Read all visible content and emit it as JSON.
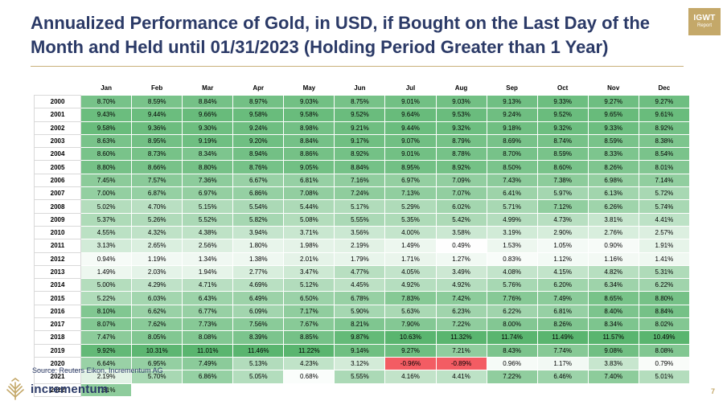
{
  "header": {
    "title_line1": "Annualized Performance of Gold, in USD, if Bought on the Last Day of the",
    "title_line2": "Month and Held until 01/31/2023 (Holding Period Greater than 1 Year)",
    "badge_line1": "IGWT",
    "badge_line2": "Report"
  },
  "colors": {
    "title": "#2b3a67",
    "accent": "#c4a869",
    "high": "#5ab56f",
    "low": "#ffffff",
    "negative": "#f35c63"
  },
  "table": {
    "columns": [
      "Jan",
      "Feb",
      "Mar",
      "Apr",
      "May",
      "Jun",
      "Jul",
      "Aug",
      "Sep",
      "Oct",
      "Nov",
      "Dec"
    ],
    "rows": [
      {
        "year": "2000",
        "values": [
          "8.70%",
          "8.59%",
          "8.84%",
          "8.97%",
          "9.03%",
          "8.75%",
          "9.01%",
          "9.03%",
          "9.13%",
          "9.33%",
          "9.27%",
          "9.27%"
        ]
      },
      {
        "year": "2001",
        "values": [
          "9.43%",
          "9.44%",
          "9.66%",
          "9.58%",
          "9.58%",
          "9.52%",
          "9.64%",
          "9.53%",
          "9.24%",
          "9.52%",
          "9.65%",
          "9.61%"
        ]
      },
      {
        "year": "2002",
        "values": [
          "9.58%",
          "9.36%",
          "9.30%",
          "9.24%",
          "8.98%",
          "9.21%",
          "9.44%",
          "9.32%",
          "9.18%",
          "9.32%",
          "9.33%",
          "8.92%"
        ]
      },
      {
        "year": "2003",
        "values": [
          "8.63%",
          "8.95%",
          "9.19%",
          "9.20%",
          "8.84%",
          "9.17%",
          "9.07%",
          "8.79%",
          "8.69%",
          "8.74%",
          "8.59%",
          "8.38%"
        ]
      },
      {
        "year": "2004",
        "values": [
          "8.60%",
          "8.73%",
          "8.34%",
          "8.94%",
          "8.86%",
          "8.92%",
          "9.01%",
          "8.78%",
          "8.70%",
          "8.59%",
          "8.33%",
          "8.54%"
        ]
      },
      {
        "year": "2005",
        "values": [
          "8.80%",
          "8.66%",
          "8.80%",
          "8.76%",
          "9.05%",
          "8.84%",
          "8.95%",
          "8.92%",
          "8.50%",
          "8.60%",
          "8.26%",
          "8.01%"
        ]
      },
      {
        "year": "2006",
        "values": [
          "7.45%",
          "7.57%",
          "7.36%",
          "6.67%",
          "6.81%",
          "7.16%",
          "6.97%",
          "7.09%",
          "7.43%",
          "7.38%",
          "6.98%",
          "7.14%"
        ]
      },
      {
        "year": "2007",
        "values": [
          "7.00%",
          "6.87%",
          "6.97%",
          "6.86%",
          "7.08%",
          "7.24%",
          "7.13%",
          "7.07%",
          "6.41%",
          "5.97%",
          "6.13%",
          "5.72%"
        ]
      },
      {
        "year": "2008",
        "values": [
          "5.02%",
          "4.70%",
          "5.15%",
          "5.54%",
          "5.44%",
          "5.17%",
          "5.29%",
          "6.02%",
          "5.71%",
          "7.12%",
          "6.26%",
          "5.74%"
        ]
      },
      {
        "year": "2009",
        "values": [
          "5.37%",
          "5.26%",
          "5.52%",
          "5.82%",
          "5.08%",
          "5.55%",
          "5.35%",
          "5.42%",
          "4.99%",
          "4.73%",
          "3.81%",
          "4.41%"
        ]
      },
      {
        "year": "2010",
        "values": [
          "4.55%",
          "4.32%",
          "4.38%",
          "3.94%",
          "3.71%",
          "3.56%",
          "4.00%",
          "3.58%",
          "3.19%",
          "2.90%",
          "2.76%",
          "2.57%"
        ]
      },
      {
        "year": "2011",
        "values": [
          "3.13%",
          "2.65%",
          "2.56%",
          "1.80%",
          "1.98%",
          "2.19%",
          "1.49%",
          "0.49%",
          "1.53%",
          "1.05%",
          "0.90%",
          "1.91%"
        ]
      },
      {
        "year": "2012",
        "values": [
          "0.94%",
          "1.19%",
          "1.34%",
          "1.38%",
          "2.01%",
          "1.79%",
          "1.71%",
          "1.27%",
          "0.83%",
          "1.12%",
          "1.16%",
          "1.41%"
        ]
      },
      {
        "year": "2013",
        "values": [
          "1.49%",
          "2.03%",
          "1.94%",
          "2.77%",
          "3.47%",
          "4.77%",
          "4.05%",
          "3.49%",
          "4.08%",
          "4.15%",
          "4.82%",
          "5.31%"
        ]
      },
      {
        "year": "2014",
        "values": [
          "5.00%",
          "4.29%",
          "4.71%",
          "4.69%",
          "5.12%",
          "4.45%",
          "4.92%",
          "4.92%",
          "5.76%",
          "6.20%",
          "6.34%",
          "6.22%"
        ]
      },
      {
        "year": "2015",
        "values": [
          "5.22%",
          "6.03%",
          "6.43%",
          "6.49%",
          "6.50%",
          "6.78%",
          "7.83%",
          "7.42%",
          "7.76%",
          "7.49%",
          "8.65%",
          "8.80%"
        ]
      },
      {
        "year": "2016",
        "values": [
          "8.10%",
          "6.62%",
          "6.77%",
          "6.09%",
          "7.17%",
          "5.90%",
          "5.63%",
          "6.23%",
          "6.22%",
          "6.81%",
          "8.40%",
          "8.84%"
        ]
      },
      {
        "year": "2017",
        "values": [
          "8.07%",
          "7.62%",
          "7.73%",
          "7.56%",
          "7.67%",
          "8.21%",
          "7.90%",
          "7.22%",
          "8.00%",
          "8.26%",
          "8.34%",
          "8.02%"
        ]
      },
      {
        "year": "2018",
        "values": [
          "7.47%",
          "8.05%",
          "8.08%",
          "8.39%",
          "8.85%",
          "9.87%",
          "10.63%",
          "11.32%",
          "11.74%",
          "11.49%",
          "11.57%",
          "10.49%"
        ]
      },
      {
        "year": "2019",
        "values": [
          "9.92%",
          "10.31%",
          "11.01%",
          "11.46%",
          "11.22%",
          "9.14%",
          "9.27%",
          "7.21%",
          "8.43%",
          "7.74%",
          "9.08%",
          "8.08%"
        ]
      },
      {
        "year": "2020",
        "values": [
          "6.64%",
          "6.95%",
          "7.49%",
          "5.13%",
          "4.23%",
          "3.12%",
          "-0.96%",
          "-0.89%",
          "0.96%",
          "1.17%",
          "3.83%",
          "0.79%"
        ]
      },
      {
        "year": "2021",
        "values": [
          "2.19%",
          "5.70%",
          "6.86%",
          "5.05%",
          "0.68%",
          "5.55%",
          "4.16%",
          "4.41%",
          "7.22%",
          "6.46%",
          "7.40%",
          "5.01%"
        ]
      },
      {
        "year": "2022",
        "values": [
          "7.31%",
          "",
          "",
          "",
          "",
          "",
          "",
          "",
          "",
          "",
          "",
          ""
        ]
      }
    ]
  },
  "footer": {
    "source": "Source: Reuters Eikon, Incrementum AG",
    "brand": "incrementum",
    "page_number": "7"
  }
}
